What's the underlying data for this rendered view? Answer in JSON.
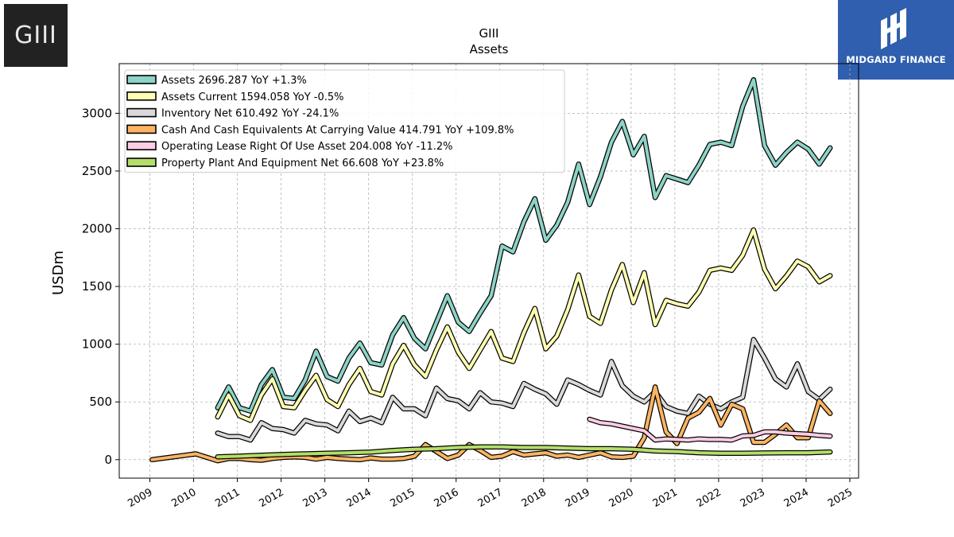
{
  "header": {
    "title": "GIII",
    "subtitle": "Assets"
  },
  "logos": {
    "left_text": "GIII",
    "right_text": "MIDGARD FINANCE"
  },
  "chart_data": {
    "type": "line",
    "title": "GIII",
    "subtitle": "Assets",
    "xlabel": "",
    "ylabel": "USDm",
    "xlim": [
      2008.3,
      2025.2
    ],
    "ylim": [
      -160,
      3430
    ],
    "yticks": [
      0,
      500,
      1000,
      1500,
      2000,
      2500,
      3000
    ],
    "xticks": [
      2009,
      2010,
      2011,
      2012,
      2013,
      2014,
      2015,
      2016,
      2017,
      2018,
      2019,
      2020,
      2021,
      2022,
      2023,
      2024,
      2025
    ],
    "grid": true,
    "legend_position": "top-left",
    "series": [
      {
        "name": "Assets",
        "legend": "Assets  2696.287 YoY +1.3%",
        "color": "#8dd3c7",
        "x": [
          2010.55,
          2010.8,
          2011.05,
          2011.3,
          2011.55,
          2011.8,
          2012.05,
          2012.3,
          2012.55,
          2012.8,
          2013.05,
          2013.3,
          2013.55,
          2013.8,
          2014.05,
          2014.3,
          2014.55,
          2014.8,
          2015.05,
          2015.3,
          2015.55,
          2015.8,
          2016.05,
          2016.3,
          2016.55,
          2016.8,
          2017.05,
          2017.3,
          2017.55,
          2017.8,
          2018.05,
          2018.3,
          2018.55,
          2018.8,
          2019.05,
          2019.3,
          2019.55,
          2019.8,
          2020.05,
          2020.3,
          2020.55,
          2020.8,
          2021.05,
          2021.3,
          2021.55,
          2021.8,
          2022.05,
          2022.3,
          2022.55,
          2022.8,
          2023.05,
          2023.3,
          2023.55,
          2023.8,
          2024.05,
          2024.3,
          2024.55
        ],
        "y": [
          450,
          630,
          450,
          420,
          650,
          780,
          540,
          530,
          690,
          940,
          720,
          680,
          880,
          1010,
          840,
          820,
          1080,
          1230,
          1050,
          960,
          1190,
          1420,
          1190,
          1110,
          1270,
          1420,
          1850,
          1800,
          2060,
          2260,
          1900,
          2030,
          2230,
          2560,
          2210,
          2450,
          2750,
          2930,
          2640,
          2800,
          2270,
          2460,
          2430,
          2400,
          2550,
          2730,
          2750,
          2720,
          3060,
          3290,
          2720,
          2550,
          2660,
          2750,
          2690,
          2560,
          2700
        ]
      },
      {
        "name": "Assets Current",
        "legend": "Assets Current  1594.058 YoY -0.5%",
        "color": "#ffffb3",
        "x": [
          2010.55,
          2010.8,
          2011.05,
          2011.3,
          2011.55,
          2011.8,
          2012.05,
          2012.3,
          2012.55,
          2012.8,
          2013.05,
          2013.3,
          2013.55,
          2013.8,
          2014.05,
          2014.3,
          2014.55,
          2014.8,
          2015.05,
          2015.3,
          2015.55,
          2015.8,
          2016.05,
          2016.3,
          2016.55,
          2016.8,
          2017.05,
          2017.3,
          2017.55,
          2017.8,
          2018.05,
          2018.3,
          2018.55,
          2018.8,
          2019.05,
          2019.3,
          2019.55,
          2019.8,
          2020.05,
          2020.3,
          2020.55,
          2020.8,
          2021.05,
          2021.3,
          2021.55,
          2021.8,
          2022.05,
          2022.3,
          2022.55,
          2022.8,
          2023.05,
          2023.3,
          2023.55,
          2023.8,
          2024.05,
          2024.3,
          2024.55
        ],
        "y": [
          370,
          560,
          380,
          340,
          560,
          700,
          460,
          450,
          600,
          730,
          520,
          460,
          650,
          790,
          590,
          560,
          830,
          990,
          820,
          720,
          950,
          1150,
          930,
          790,
          950,
          1110,
          880,
          850,
          1100,
          1310,
          960,
          1070,
          1300,
          1600,
          1240,
          1180,
          1470,
          1690,
          1360,
          1620,
          1170,
          1380,
          1350,
          1330,
          1450,
          1640,
          1660,
          1640,
          1770,
          1990,
          1650,
          1480,
          1590,
          1720,
          1670,
          1540,
          1594
        ]
      },
      {
        "name": "Inventory Net",
        "legend": "Inventory Net  610.492 YoY -24.1%",
        "color": "#d9d9d9",
        "x": [
          2010.55,
          2010.8,
          2011.05,
          2011.3,
          2011.55,
          2011.8,
          2012.05,
          2012.3,
          2012.55,
          2012.8,
          2013.05,
          2013.3,
          2013.55,
          2013.8,
          2014.05,
          2014.3,
          2014.55,
          2014.8,
          2015.05,
          2015.3,
          2015.55,
          2015.8,
          2016.05,
          2016.3,
          2016.55,
          2016.8,
          2017.05,
          2017.3,
          2017.55,
          2017.8,
          2018.05,
          2018.3,
          2018.55,
          2018.8,
          2019.05,
          2019.3,
          2019.55,
          2019.8,
          2020.05,
          2020.3,
          2020.55,
          2020.8,
          2021.05,
          2021.3,
          2021.55,
          2021.8,
          2022.05,
          2022.3,
          2022.55,
          2022.8,
          2023.05,
          2023.3,
          2023.55,
          2023.8,
          2024.05,
          2024.3,
          2024.55
        ],
        "y": [
          230,
          200,
          200,
          170,
          320,
          270,
          260,
          230,
          340,
          310,
          300,
          250,
          420,
          330,
          360,
          320,
          540,
          440,
          440,
          380,
          620,
          530,
          510,
          440,
          580,
          500,
          490,
          460,
          660,
          610,
          570,
          480,
          690,
          650,
          600,
          560,
          850,
          640,
          550,
          500,
          590,
          460,
          420,
          400,
          550,
          480,
          440,
          500,
          540,
          1040,
          880,
          700,
          630,
          830,
          590,
          520,
          610
        ]
      },
      {
        "name": "Cash And Cash Equivalents At Carrying Value",
        "legend": "Cash And Cash Equivalents At Carrying Value  414.791 YoY +109.8%",
        "color": "#fdb462",
        "x": [
          2009.05,
          2010.05,
          2010.55,
          2010.8,
          2011.05,
          2011.3,
          2011.55,
          2011.8,
          2012.05,
          2012.3,
          2012.55,
          2012.8,
          2013.05,
          2013.3,
          2013.55,
          2013.8,
          2014.05,
          2014.3,
          2014.55,
          2014.8,
          2015.05,
          2015.3,
          2015.55,
          2015.8,
          2016.05,
          2016.3,
          2016.55,
          2016.8,
          2017.05,
          2017.3,
          2017.55,
          2017.8,
          2018.05,
          2018.3,
          2018.55,
          2018.8,
          2019.05,
          2019.3,
          2019.55,
          2019.8,
          2020.05,
          2020.3,
          2020.55,
          2020.8,
          2021.05,
          2021.3,
          2021.55,
          2021.8,
          2022.05,
          2022.3,
          2022.55,
          2022.8,
          2023.05,
          2023.3,
          2023.55,
          2023.8,
          2024.05,
          2024.3,
          2024.55
        ],
        "y": [
          0,
          50,
          -10,
          10,
          10,
          0,
          -5,
          10,
          20,
          25,
          20,
          5,
          20,
          10,
          5,
          0,
          15,
          5,
          5,
          10,
          30,
          130,
          70,
          10,
          40,
          130,
          80,
          20,
          30,
          70,
          40,
          50,
          60,
          30,
          40,
          20,
          40,
          60,
          25,
          20,
          30,
          190,
          630,
          240,
          140,
          360,
          410,
          530,
          300,
          480,
          440,
          150,
          150,
          220,
          300,
          190,
          190,
          510,
          400
        ]
      },
      {
        "name": "Operating Lease Right Of Use Asset",
        "legend": "Operating Lease Right Of Use Asset  204.008 YoY -11.2%",
        "color": "#fccde5",
        "x": [
          2019.05,
          2019.3,
          2019.55,
          2019.8,
          2020.05,
          2020.3,
          2020.55,
          2020.8,
          2021.05,
          2021.3,
          2021.55,
          2021.8,
          2022.05,
          2022.3,
          2022.55,
          2022.8,
          2023.05,
          2023.3,
          2023.55,
          2023.8,
          2024.05,
          2024.3,
          2024.55
        ],
        "y": [
          350,
          320,
          310,
          290,
          270,
          250,
          170,
          180,
          175,
          170,
          180,
          175,
          175,
          170,
          205,
          210,
          240,
          240,
          230,
          225,
          220,
          210,
          204
        ]
      },
      {
        "name": "Property Plant And Equipment Net",
        "legend": "Property Plant And Equipment Net  66.608 YoY +23.8%",
        "color": "#b3de69",
        "x": [
          2010.55,
          2011.05,
          2011.55,
          2012.05,
          2012.55,
          2013.05,
          2013.55,
          2014.05,
          2014.55,
          2015.05,
          2015.55,
          2016.05,
          2016.55,
          2017.05,
          2017.55,
          2018.05,
          2018.55,
          2019.05,
          2019.55,
          2020.05,
          2020.55,
          2021.05,
          2021.55,
          2022.05,
          2022.55,
          2023.05,
          2023.55,
          2024.05,
          2024.55
        ],
        "y": [
          25,
          30,
          38,
          45,
          50,
          55,
          60,
          65,
          80,
          90,
          95,
          105,
          110,
          110,
          105,
          105,
          100,
          95,
          95,
          90,
          75,
          70,
          60,
          55,
          55,
          58,
          60,
          60,
          67
        ]
      }
    ]
  }
}
